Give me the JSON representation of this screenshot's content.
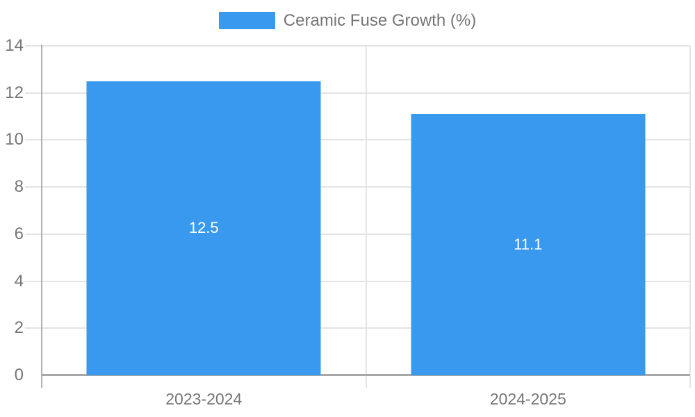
{
  "chart_data": {
    "type": "bar",
    "title": "Ceramic Fuse Growth (%)",
    "categories": [
      "2023-2024",
      "2024-2025"
    ],
    "values": [
      12.5,
      11.1
    ],
    "bar_labels": [
      "12.5",
      "11.1"
    ],
    "xlabel": "",
    "ylabel": "",
    "ylim": [
      0,
      14
    ],
    "yticks": [
      0,
      2,
      4,
      6,
      8,
      10,
      12,
      14
    ],
    "ytick_labels_top_to_bottom": [
      "14",
      "12",
      "10",
      "8",
      "6",
      "4",
      "2",
      "0"
    ],
    "grid": true,
    "legend": {
      "label": "Ceramic Fuse Growth (%)",
      "position": "top-center"
    },
    "colors": {
      "bar": "#3899ee",
      "bar_label": "#ffffff",
      "axis_text": "#757575",
      "gridline": "#e4e4e4",
      "axis_line": "#a8a8a8",
      "background": "#ffffff"
    }
  }
}
